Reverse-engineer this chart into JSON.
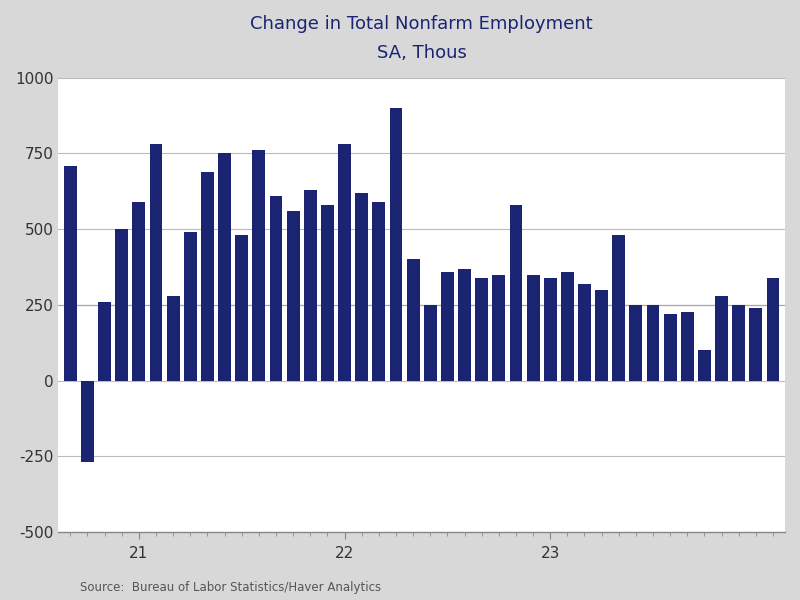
{
  "title_line1": "Change in Total Nonfarm Employment",
  "title_line2": "SA, Thous",
  "bar_color": "#1a2472",
  "background_color": "#d8d8d8",
  "plot_background": "#ffffff",
  "source_text": "Source:  Bureau of Labor Statistics/Haver Analytics",
  "ylim": [
    -500,
    1000
  ],
  "yticks": [
    -500,
    -250,
    0,
    250,
    500,
    750,
    1000
  ],
  "values": [
    710,
    -270,
    260,
    500,
    590,
    780,
    280,
    490,
    690,
    750,
    480,
    760,
    610,
    560,
    630,
    580,
    780,
    620,
    590,
    900,
    400,
    250,
    360,
    370,
    340,
    350,
    580,
    350,
    340,
    360,
    320,
    300,
    480,
    250,
    250,
    220,
    225,
    100,
    280,
    250,
    240,
    340
  ],
  "x_tick_positions": [
    4,
    16,
    28
  ],
  "x_tick_labels": [
    "21",
    "22",
    "23"
  ],
  "ref_line": 250,
  "title_fontsize": 13,
  "subtitle_fontsize": 12,
  "axis_fontsize": 11,
  "source_fontsize": 8.5,
  "title_color": "#1a2472",
  "axis_label_color": "#333333",
  "grid_color": "#bbbbbb"
}
